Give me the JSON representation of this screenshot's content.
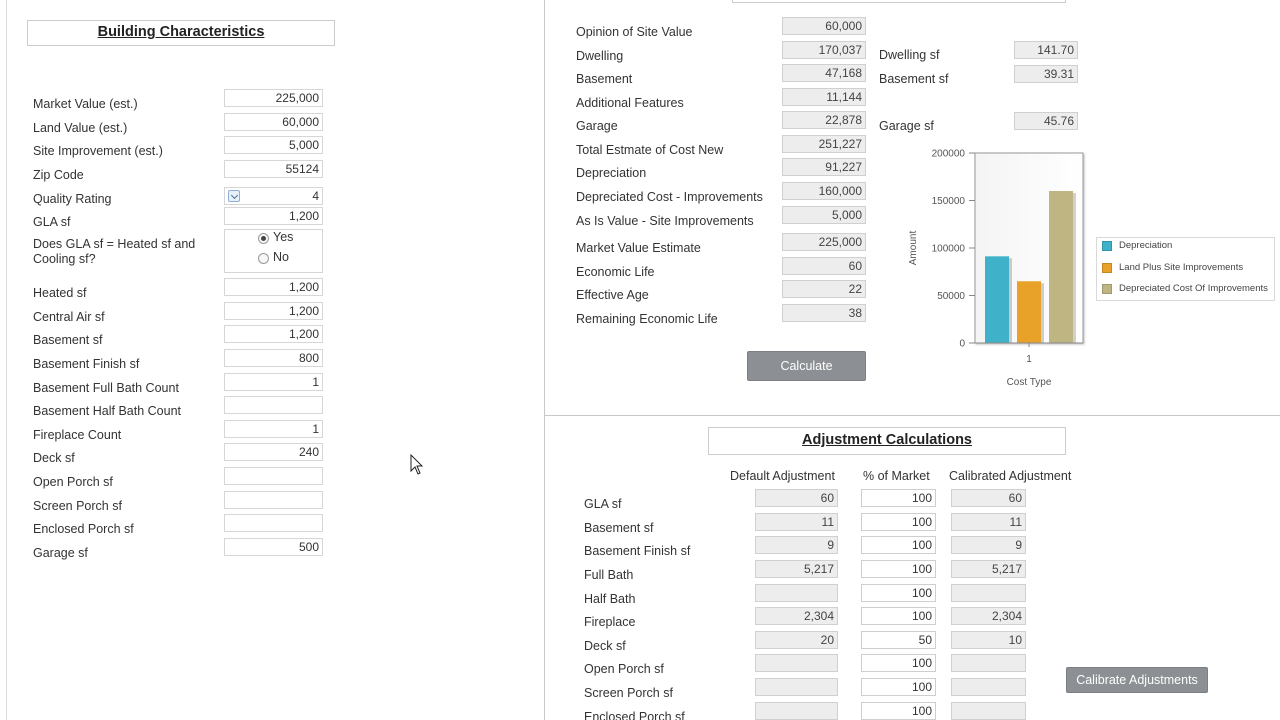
{
  "building": {
    "title": "Building Characteristics",
    "fields": [
      {
        "label": "Market Value (est.)",
        "value": "225,000"
      },
      {
        "label": "Land Value (est.)",
        "value": "60,000"
      },
      {
        "label": "Site Improvement (est.)",
        "value": "5,000"
      },
      {
        "label": "Zip Code",
        "value": "55124"
      },
      {
        "label": "Quality Rating",
        "value": "4"
      },
      {
        "label": "GLA sf",
        "value": "1,200"
      },
      {
        "label": "Does GLA sf = Heated sf and Cooling sf?",
        "options": [
          "Yes",
          "No"
        ],
        "selected": "Yes"
      },
      {
        "label": "Heated sf",
        "value": "1,200"
      },
      {
        "label": "Central Air sf",
        "value": "1,200"
      },
      {
        "label": "Basement sf",
        "value": "1,200"
      },
      {
        "label": "Basement Finish sf",
        "value": "800"
      },
      {
        "label": "Basement Full Bath Count",
        "value": "1"
      },
      {
        "label": "Basement Half Bath Count",
        "value": ""
      },
      {
        "label": "Fireplace Count",
        "value": "1"
      },
      {
        "label": "Deck sf",
        "value": "240"
      },
      {
        "label": "Open Porch sf",
        "value": ""
      },
      {
        "label": "Screen Porch sf",
        "value": ""
      },
      {
        "label": "Enclosed Porch sf",
        "value": ""
      },
      {
        "label": "Garage sf",
        "value": "500"
      }
    ]
  },
  "cost": {
    "rows": [
      {
        "label": "Opinion of Site Value",
        "value": "60,000"
      },
      {
        "label": "Dwelling",
        "value": "170,037"
      },
      {
        "label": "Basement",
        "value": "47,168"
      },
      {
        "label": "Additional Features",
        "value": "11,144"
      },
      {
        "label": "Garage",
        "value": "22,878"
      },
      {
        "label": "Total Estmate of Cost New",
        "value": "251,227"
      },
      {
        "label": "Depreciation",
        "value": "91,227"
      },
      {
        "label": "Depreciated Cost - Improvements",
        "value": "160,000"
      },
      {
        "label": "As Is Value - Site Improvements",
        "value": "5,000"
      },
      {
        "label": "Market Value Estimate",
        "value": "225,000"
      },
      {
        "label": "Economic Life",
        "value": "60"
      },
      {
        "label": "Effective Age",
        "value": "22"
      },
      {
        "label": "Remaining Economic Life",
        "value": "38"
      }
    ],
    "sf_rows": [
      {
        "label": "Dwelling sf",
        "value": "141.70"
      },
      {
        "label": "Basement sf",
        "value": "39.31"
      },
      {
        "label": "Garage sf",
        "value": "45.76"
      }
    ],
    "calculate_label": "Calculate"
  },
  "chart_data": {
    "type": "bar",
    "categories": [
      "1"
    ],
    "series": [
      {
        "name": "Depreciation",
        "values": [
          91227
        ],
        "color": "#3fb1c8"
      },
      {
        "name": "Land Plus Site Improvements",
        "values": [
          65000
        ],
        "color": "#e8a22a"
      },
      {
        "name": "Depreciated Cost Of Improvements",
        "values": [
          160000
        ],
        "color": "#bfb583"
      }
    ],
    "xlabel": "Cost Type",
    "ylabel": "Amount",
    "ylim": [
      0,
      200000
    ],
    "yticks": [
      "200000",
      "150000",
      "100000",
      "50000",
      "0"
    ],
    "legend": "right"
  },
  "adjust": {
    "title": "Adjustment Calculations",
    "headers": [
      "Default Adjustment",
      "% of Market",
      "Calibrated Adjustment"
    ],
    "rows": [
      {
        "label": "GLA sf",
        "def": "60",
        "pct": "100",
        "cal": "60"
      },
      {
        "label": "Basement sf",
        "def": "11",
        "pct": "100",
        "cal": "11"
      },
      {
        "label": "Basement Finish sf",
        "def": "9",
        "pct": "100",
        "cal": "9"
      },
      {
        "label": "Full Bath",
        "def": "5,217",
        "pct": "100",
        "cal": "5,217"
      },
      {
        "label": "Half Bath",
        "def": "",
        "pct": "100",
        "cal": ""
      },
      {
        "label": "Fireplace",
        "def": "2,304",
        "pct": "100",
        "cal": "2,304"
      },
      {
        "label": "Deck sf",
        "def": "20",
        "pct": "50",
        "cal": "10"
      },
      {
        "label": "Open Porch sf",
        "def": "",
        "pct": "100",
        "cal": ""
      },
      {
        "label": "Screen Porch sf",
        "def": "",
        "pct": "100",
        "cal": ""
      },
      {
        "label": "Enclosed Porch sf",
        "def": "",
        "pct": "100",
        "cal": ""
      }
    ],
    "calibrate_label": "Calibrate Adjustments"
  }
}
